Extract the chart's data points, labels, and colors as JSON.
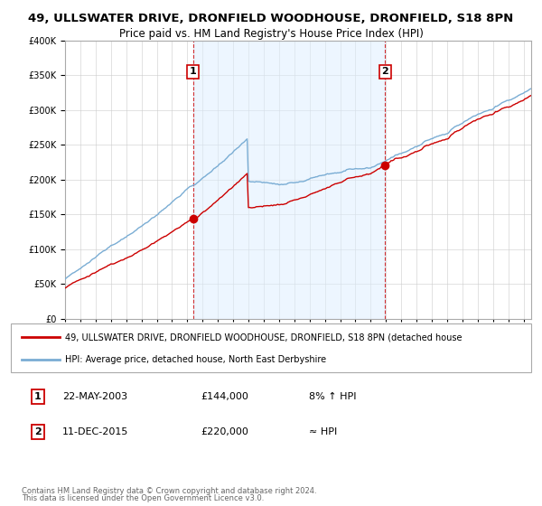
{
  "title": "49, ULLSWATER DRIVE, DRONFIELD WOODHOUSE, DRONFIELD, S18 8PN",
  "subtitle": "Price paid vs. HM Land Registry's House Price Index (HPI)",
  "legend_line1": "49, ULLSWATER DRIVE, DRONFIELD WOODHOUSE, DRONFIELD, S18 8PN (detached house",
  "legend_line2": "HPI: Average price, detached house, North East Derbyshire",
  "footer1": "Contains HM Land Registry data © Crown copyright and database right 2024.",
  "footer2": "This data is licensed under the Open Government Licence v3.0.",
  "transaction1_date": "22-MAY-2003",
  "transaction1_price": "£144,000",
  "transaction1_hpi": "8% ↑ HPI",
  "transaction2_date": "11-DEC-2015",
  "transaction2_price": "£220,000",
  "transaction2_hpi": "≈ HPI",
  "transaction1_year": 2003.38,
  "transaction1_value": 144000,
  "transaction2_year": 2015.94,
  "transaction2_value": 220000,
  "ylim": [
    0,
    400000
  ],
  "yticks": [
    0,
    50000,
    100000,
    150000,
    200000,
    250000,
    300000,
    350000,
    400000
  ],
  "red_color": "#cc0000",
  "blue_color": "#7aadd4",
  "blue_fill": "#ddeeff",
  "marker_color": "#cc0000",
  "dashed_line_color": "#cc0000",
  "background_color": "#ffffff",
  "grid_color": "#cccccc"
}
